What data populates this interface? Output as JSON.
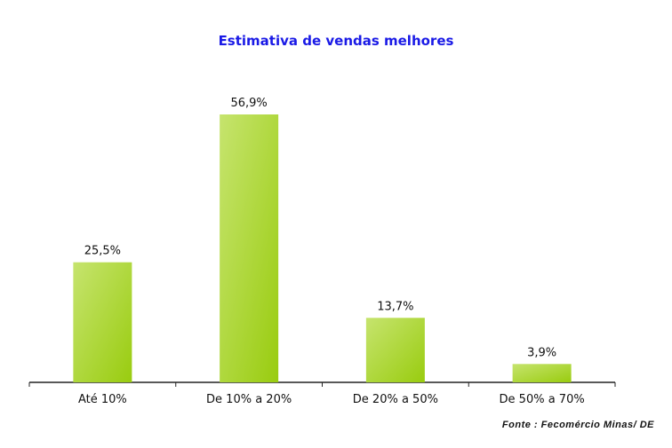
{
  "chart_data": {
    "type": "bar",
    "title": "Estimativa de vendas melhores",
    "categories": [
      "Até 10%",
      "De 10% a 20%",
      "De 20% a 50%",
      "De 50% a 70%"
    ],
    "values": [
      25.5,
      56.9,
      13.7,
      3.9
    ],
    "data_labels": [
      "25,5%",
      "56,9%",
      "13,7%",
      "3,9%"
    ],
    "xlabel": "",
    "ylabel": "",
    "ylim": [
      0,
      57
    ],
    "grid": false,
    "bar_color": "#a8d43c",
    "source": "Fonte :  Fecomércio Minas/   DE"
  }
}
